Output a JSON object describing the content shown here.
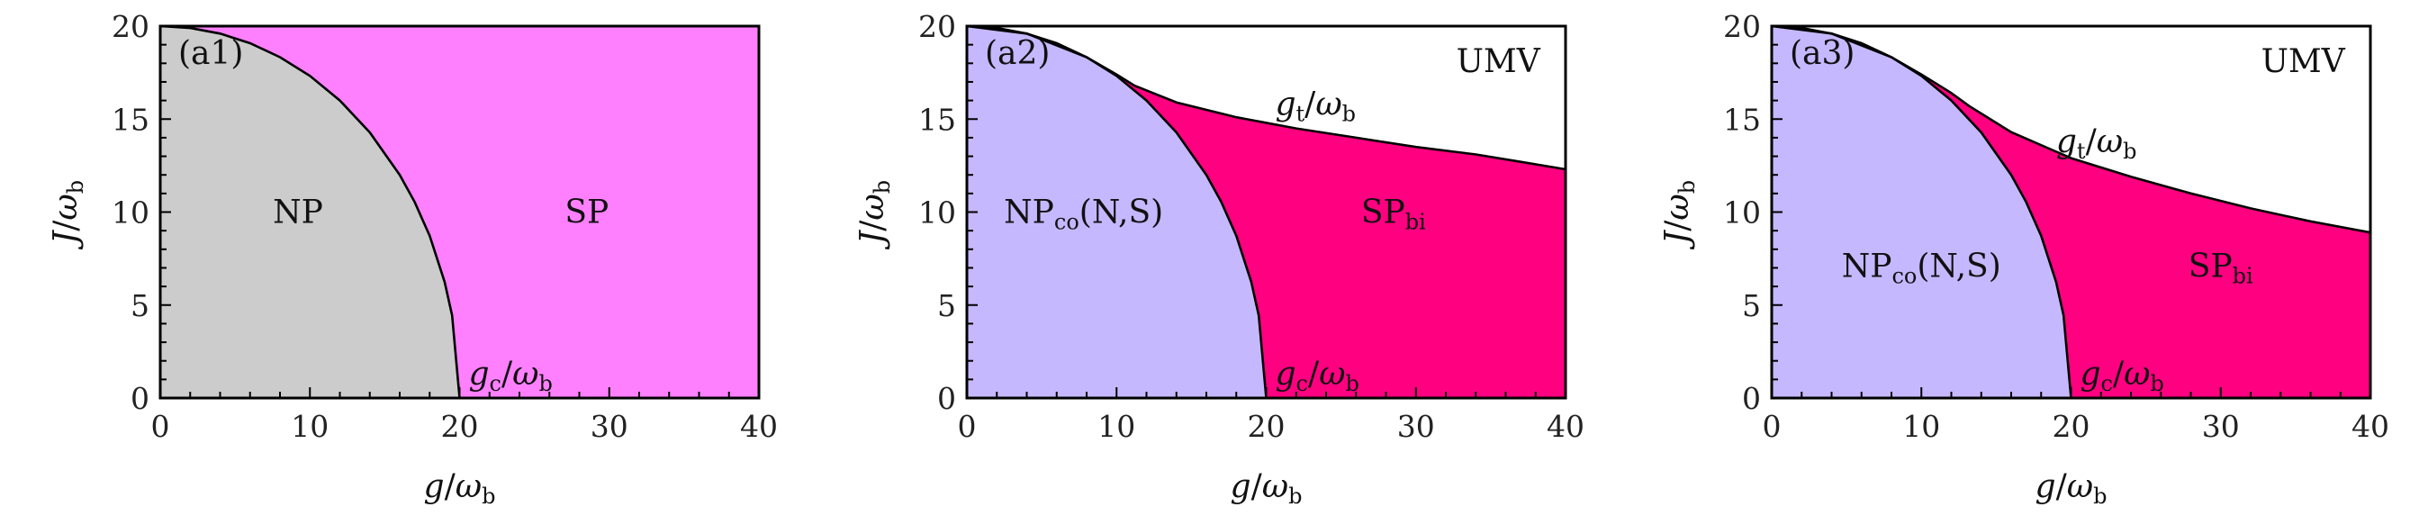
{
  "colors": {
    "np_gray": "#cccccc",
    "sp_pink": "#ff80ff",
    "np_lavender": "#c6b8ff",
    "sp_bi_magenta": "#ff0080",
    "umv_white": "#ffffff",
    "axis": "#000000"
  },
  "chart_data": [
    {
      "type": "area",
      "panel_tag": "(a1)",
      "xlabel": {
        "base": "g",
        "sep": "/",
        "omega": "ω",
        "sub": "b"
      },
      "ylabel": {
        "base": "J",
        "sep": "/",
        "omega": "ω",
        "sub": "b"
      },
      "xlim": [
        0,
        40
      ],
      "ylim": [
        0,
        20
      ],
      "xticks": [
        0,
        10,
        20,
        30,
        40
      ],
      "yticks": [
        0,
        5,
        10,
        15,
        20
      ],
      "regions": [
        {
          "name": "NP",
          "sub": "",
          "suffix": "",
          "color": "np_gray",
          "label_at": [
            9.2,
            10
          ]
        },
        {
          "name": "SP",
          "sub": "",
          "suffix": "",
          "color": "sp_pink",
          "label_at": [
            28.5,
            10
          ]
        }
      ],
      "boundaries": [
        {
          "kind": "gc",
          "label": {
            "base": "g",
            "sub": "c"
          },
          "label_at": [
            20.6,
            1.3
          ],
          "points": [
            [
              0,
              20
            ],
            [
              2,
              19.9
            ],
            [
              4,
              19.6
            ],
            [
              6,
              19.08
            ],
            [
              8,
              18.33
            ],
            [
              10,
              17.32
            ],
            [
              12,
              16.0
            ],
            [
              14,
              14.28
            ],
            [
              16,
              12.0
            ],
            [
              17,
              10.54
            ],
            [
              18,
              8.72
            ],
            [
              19,
              6.24
            ],
            [
              19.5,
              4.44
            ],
            [
              20,
              0
            ]
          ]
        }
      ],
      "annotations": []
    },
    {
      "type": "area",
      "panel_tag": "(a2)",
      "xlabel": {
        "base": "g",
        "sep": "/",
        "omega": "ω",
        "sub": "b"
      },
      "ylabel": {
        "base": "J",
        "sep": "/",
        "omega": "ω",
        "sub": "b"
      },
      "xlim": [
        0,
        40
      ],
      "ylim": [
        0,
        20
      ],
      "xticks": [
        0,
        10,
        20,
        30,
        40
      ],
      "yticks": [
        0,
        5,
        10,
        15,
        20
      ],
      "regions": [
        {
          "name": "NP",
          "sub": "co",
          "suffix": "(N,S)",
          "color": "np_lavender",
          "label_at": [
            7.8,
            10
          ]
        },
        {
          "name": "SP",
          "sub": "bi",
          "suffix": "",
          "color": "sp_bi_magenta",
          "label_at": [
            28.5,
            10
          ]
        }
      ],
      "boundaries": [
        {
          "kind": "gc",
          "label": {
            "base": "g",
            "sub": "c"
          },
          "label_at": [
            20.6,
            1.3
          ],
          "points": [
            [
              0,
              20
            ],
            [
              2,
              19.9
            ],
            [
              4,
              19.6
            ],
            [
              6,
              19.08
            ],
            [
              8,
              18.33
            ],
            [
              10,
              17.32
            ],
            [
              12,
              16.0
            ],
            [
              14,
              14.28
            ],
            [
              16,
              12.0
            ],
            [
              17,
              10.54
            ],
            [
              18,
              8.72
            ],
            [
              19,
              6.24
            ],
            [
              19.5,
              4.44
            ],
            [
              20,
              0
            ]
          ]
        },
        {
          "kind": "gt",
          "label": {
            "base": "g",
            "sub": "t"
          },
          "label_at": [
            20.6,
            15.8
          ],
          "points": [
            [
              0,
              20
            ],
            [
              4,
              19.6
            ],
            [
              8,
              18.33
            ],
            [
              10,
              17.4
            ],
            [
              11.2,
              16.8
            ],
            [
              14,
              15.9
            ],
            [
              18,
              15.1
            ],
            [
              22,
              14.5
            ],
            [
              26,
              14.0
            ],
            [
              30,
              13.5
            ],
            [
              34,
              13.1
            ],
            [
              37,
              12.7
            ],
            [
              40,
              12.3
            ]
          ]
        }
      ],
      "annotations": [
        {
          "text": "UMV",
          "at": [
            35.5,
            18.1
          ]
        }
      ]
    },
    {
      "type": "area",
      "panel_tag": "(a3)",
      "xlabel": {
        "base": "g",
        "sep": "/",
        "omega": "ω",
        "sub": "b"
      },
      "ylabel": {
        "base": "J",
        "sep": "/",
        "omega": "ω",
        "sub": "b"
      },
      "xlim": [
        0,
        40
      ],
      "ylim": [
        0,
        20
      ],
      "xticks": [
        0,
        10,
        20,
        30,
        40
      ],
      "yticks": [
        0,
        5,
        10,
        15,
        20
      ],
      "regions": [
        {
          "name": "NP",
          "sub": "co",
          "suffix": "(N,S)",
          "color": "np_lavender",
          "label_at": [
            10.0,
            7.1
          ]
        },
        {
          "name": "SP",
          "sub": "bi",
          "suffix": "",
          "color": "sp_bi_magenta",
          "label_at": [
            30.0,
            7.1
          ]
        }
      ],
      "boundaries": [
        {
          "kind": "gc",
          "label": {
            "base": "g",
            "sub": "c"
          },
          "label_at": [
            20.6,
            1.3
          ],
          "points": [
            [
              0,
              20
            ],
            [
              2,
              19.9
            ],
            [
              4,
              19.6
            ],
            [
              6,
              19.08
            ],
            [
              8,
              18.33
            ],
            [
              10,
              17.32
            ],
            [
              12,
              16.0
            ],
            [
              14,
              14.28
            ],
            [
              16,
              12.0
            ],
            [
              17,
              10.54
            ],
            [
              18,
              8.72
            ],
            [
              19,
              6.24
            ],
            [
              19.5,
              4.44
            ],
            [
              20,
              0
            ]
          ]
        },
        {
          "kind": "gt",
          "label": {
            "base": "g",
            "sub": "t"
          },
          "label_at": [
            19.0,
            13.8
          ],
          "points": [
            [
              0,
              20
            ],
            [
              4,
              19.6
            ],
            [
              8,
              18.33
            ],
            [
              10,
              17.4
            ],
            [
              12,
              16.4
            ],
            [
              13.2,
              15.7
            ],
            [
              16,
              14.3
            ],
            [
              20,
              12.9
            ],
            [
              24,
              11.9
            ],
            [
              28,
              11.0
            ],
            [
              32,
              10.2
            ],
            [
              36,
              9.5
            ],
            [
              40,
              8.9
            ]
          ]
        }
      ],
      "annotations": [
        {
          "text": "UMV",
          "at": [
            35.5,
            18.1
          ]
        }
      ]
    }
  ]
}
